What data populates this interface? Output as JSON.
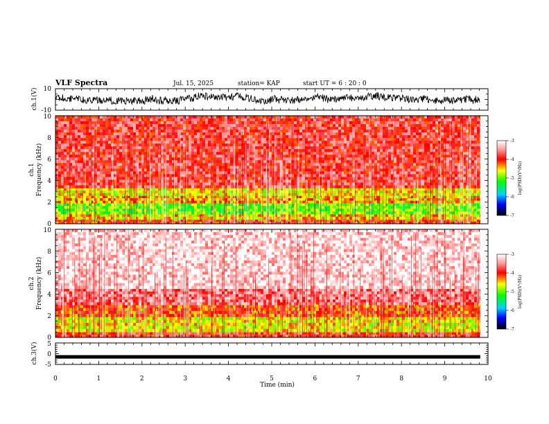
{
  "header": {
    "title": "VLF Spectra",
    "date": "Jul. 15, 2025",
    "station": "station= KAP",
    "start": "start  UT =   6 : 20 : 0"
  },
  "chart_data": [
    {
      "type": "line",
      "name": "ch.1 waveform",
      "ylabel": "ch.1(V)",
      "ylim": [
        -10,
        10
      ],
      "yticks": [
        "10",
        "-10"
      ],
      "xlim": [
        0,
        10
      ],
      "x_end": 9.82,
      "description_values": "noisy waveform around 0 V, range about -5 to 5 V"
    },
    {
      "type": "heatmap",
      "name": "ch.1 spectrogram",
      "ylabel": "ch.1",
      "ylabel2": "Frequency (kHz)",
      "ylim": [
        0,
        10
      ],
      "yticks": [
        "0",
        "2",
        "4",
        "6",
        "8",
        "10"
      ],
      "xlim": [
        0,
        10
      ],
      "x_end": 9.82,
      "colorbar": {
        "label": "log(PSD)(V²/Hz)",
        "ticks": [
          "-3",
          "-4",
          "-5",
          "-6",
          "-7"
        ],
        "range": [
          -7,
          -3
        ]
      },
      "bands": [
        {
          "fmin": 0,
          "fmax": 0.4,
          "level": -4.0
        },
        {
          "fmin": 0.4,
          "fmax": 0.9,
          "level": -4.5
        },
        {
          "fmin": 0.9,
          "fmax": 1.9,
          "level": -5.0
        },
        {
          "fmin": 1.9,
          "fmax": 2.6,
          "level": -4.4
        },
        {
          "fmin": 2.6,
          "fmax": 3.3,
          "level": -4.6
        },
        {
          "fmin": 3.3,
          "fmax": 10,
          "level": -3.8
        }
      ]
    },
    {
      "type": "heatmap",
      "name": "ch.2 spectrogram",
      "ylabel": "ch.2",
      "ylabel2": "Frequency (kHz)",
      "ylim": [
        0,
        10
      ],
      "yticks": [
        "0",
        "2",
        "4",
        "6",
        "8",
        "10"
      ],
      "xlim": [
        0,
        10
      ],
      "x_end": 9.82,
      "colorbar": {
        "label": "log(PSD)(V²/Hz)",
        "ticks": [
          "-3",
          "-4",
          "-5",
          "-6",
          "-7"
        ],
        "range": [
          -7,
          -3
        ]
      },
      "bands": [
        {
          "fmin": 0,
          "fmax": 0.5,
          "level": -3.9
        },
        {
          "fmin": 0.5,
          "fmax": 1.9,
          "level": -4.6
        },
        {
          "fmin": 1.9,
          "fmax": 3.0,
          "level": -4.1
        },
        {
          "fmin": 3.0,
          "fmax": 4.5,
          "level": -3.6
        },
        {
          "fmin": 4.5,
          "fmax": 10,
          "level": -3.2
        }
      ]
    },
    {
      "type": "line",
      "name": "ch.3 waveform",
      "ylabel": "ch.3(V)",
      "ylim": [
        -5,
        5
      ],
      "yticks": [
        "5",
        "0",
        "-5"
      ],
      "xlim": [
        0,
        10
      ],
      "x_end": 9.82,
      "level": -1.5,
      "xlabel": "Time (min)",
      "xticks": [
        "0",
        "1",
        "2",
        "3",
        "4",
        "5",
        "6",
        "7",
        "8",
        "9",
        "10"
      ]
    }
  ]
}
